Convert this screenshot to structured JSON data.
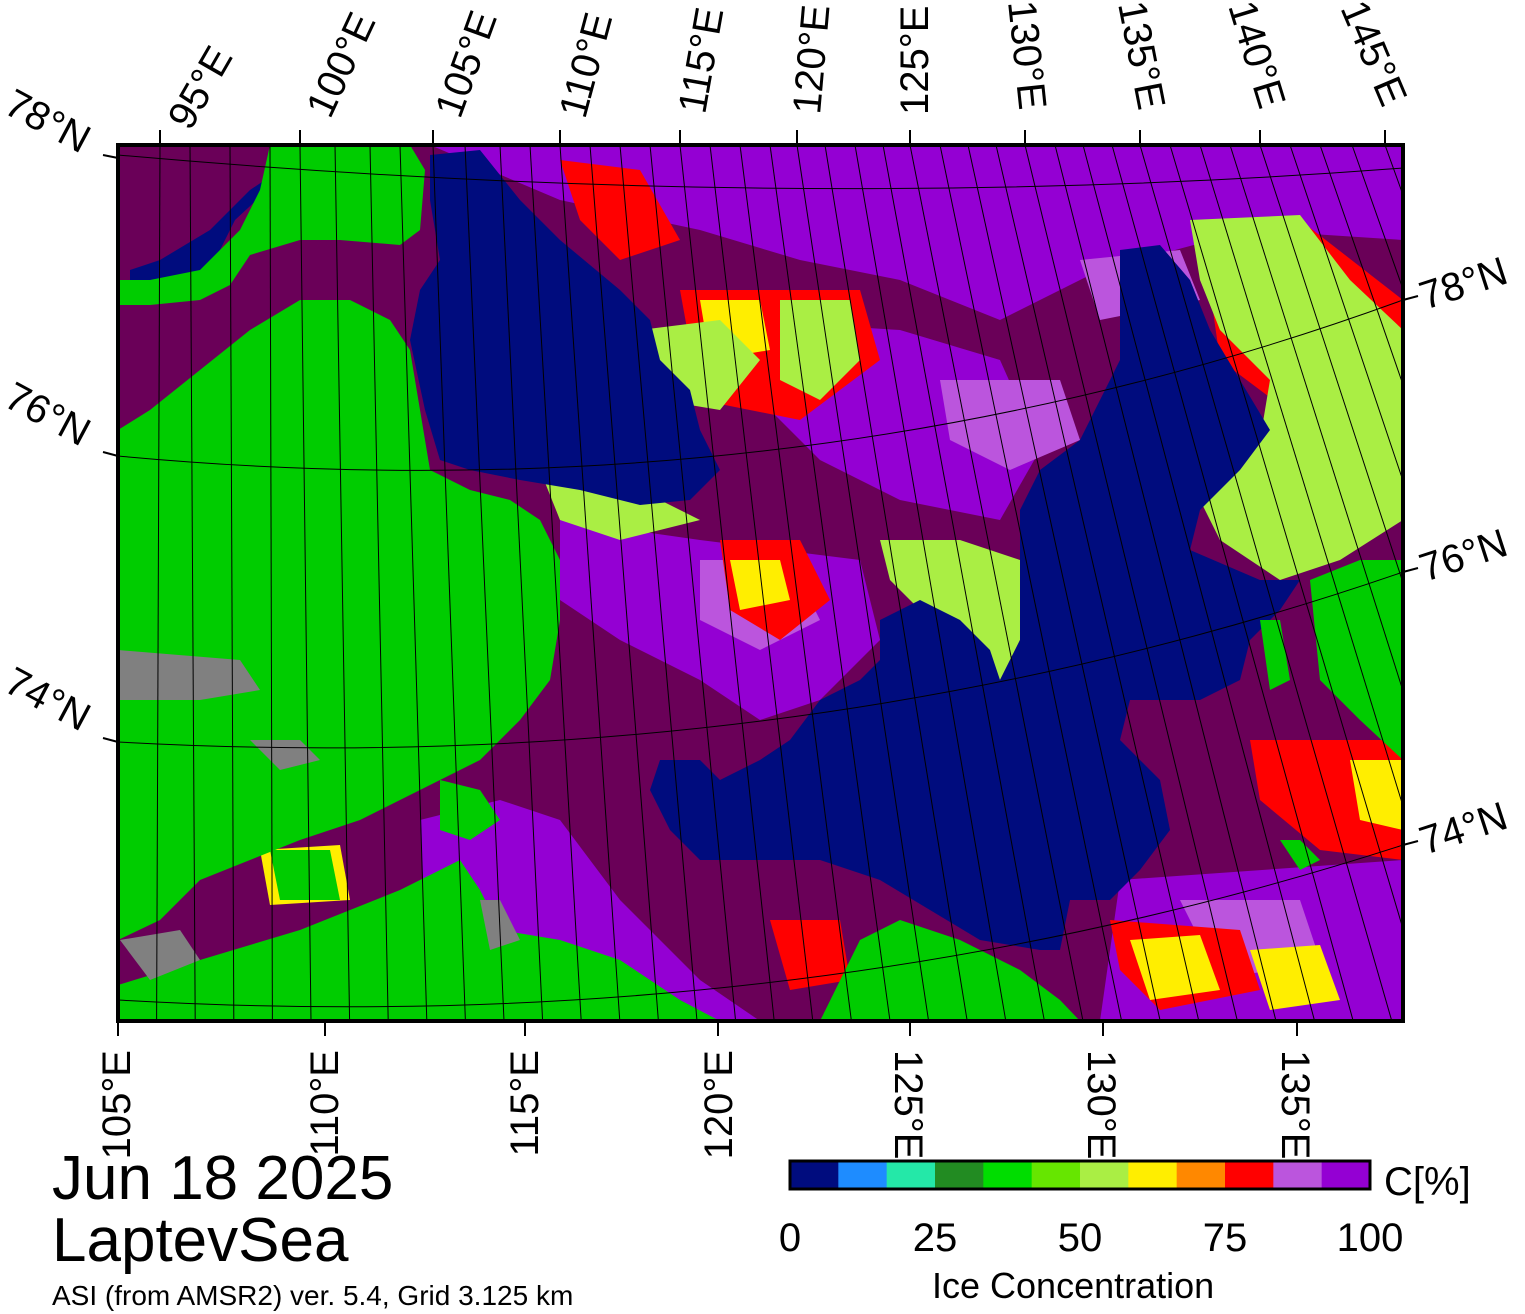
{
  "map": {
    "date": "Jun 18 2025",
    "region": "LaptevSea",
    "source": "ASI (from AMSR2) ver. 5.4,  Grid 3.125 km",
    "top_lon_labels": [
      "95°E",
      "100°E",
      "105°E",
      "110°E",
      "115°E",
      "120°E",
      "125°E",
      "130°E",
      "135°E",
      "140°E",
      "145°E"
    ],
    "bottom_lon_labels": [
      "105°E",
      "110°E",
      "115°E",
      "120°E",
      "125°E",
      "130°E",
      "135°E"
    ],
    "left_lat_labels": [
      "78°N",
      "76°N",
      "74°N"
    ],
    "right_lat_labels": [
      "78°N",
      "76°N",
      "74°N"
    ],
    "colors": {
      "open_water": "#000c7e",
      "land": "#00cc00",
      "coast_mask": "#808080",
      "high_ice": "#6a0058",
      "ice_purple": "#9400d3",
      "ice_lilac": "#bb55dd",
      "ice_red": "#ff0000",
      "ice_yellow": "#ffee00"
    }
  },
  "colorbar": {
    "unit": "C[%]",
    "title": "Ice Concentration",
    "ticks": [
      "0",
      "25",
      "50",
      "75",
      "100"
    ],
    "colors": [
      "#000c7e",
      "#1e8cff",
      "#24e8a8",
      "#228b22",
      "#00dd00",
      "#66e600",
      "#aaee44",
      "#ffee00",
      "#ff8800",
      "#ff0000",
      "#bb55dd",
      "#9400d3"
    ]
  }
}
